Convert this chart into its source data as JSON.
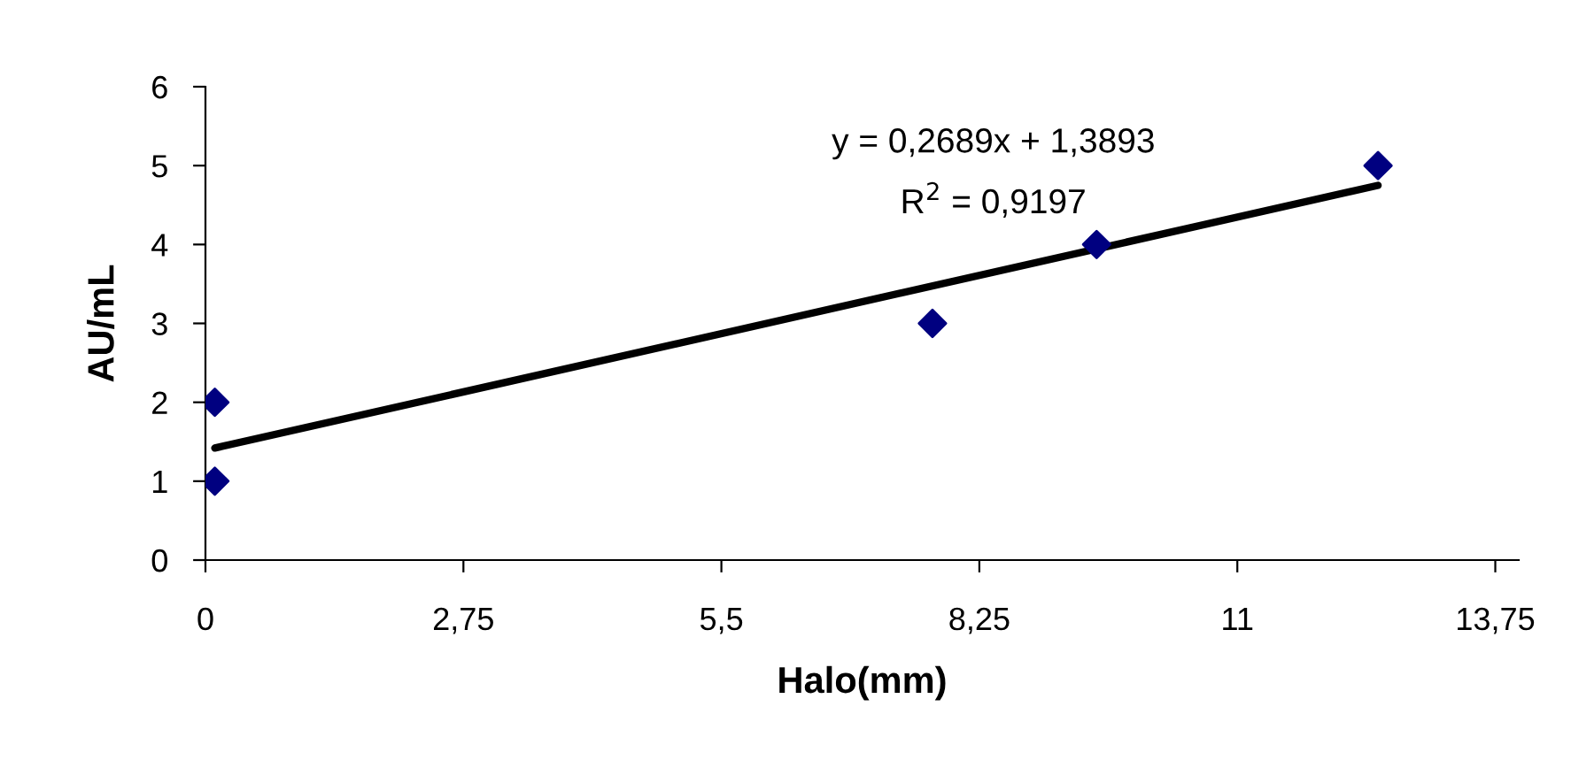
{
  "chart_data": {
    "type": "scatter",
    "xlabel": "Halo(mm)",
    "ylabel": "AU/mL",
    "series": [
      {
        "color": "#000080",
        "marker": "diamond",
        "x": [
          0.1,
          0.1,
          7.75,
          9.5,
          12.5
        ],
        "values": [
          1,
          2,
          3,
          4,
          5
        ]
      },
      {
        "type": "line",
        "color": "#000000",
        "marker": "none",
        "line_style": "solid",
        "x": [
          0.1,
          12.5
        ],
        "values": [
          1.42,
          4.75
        ]
      }
    ],
    "xlim": [
      0,
      14
    ],
    "xticks": [
      0,
      {
        "value": 2.75,
        "label": "2,75"
      },
      {
        "value": 5.5,
        "label": "5,5"
      },
      {
        "value": 8.25,
        "label": "8,25"
      },
      11,
      {
        "value": 13.75,
        "label": "13,75"
      }
    ],
    "ylim": [
      0,
      6
    ],
    "yticks": [
      0,
      1,
      2,
      3,
      4,
      5,
      6
    ],
    "annotations": [
      "y = 0,2689x + 1,3893",
      "R$^{2}$ = 0,9197"
    ],
    "grid": false,
    "legend": false
  }
}
